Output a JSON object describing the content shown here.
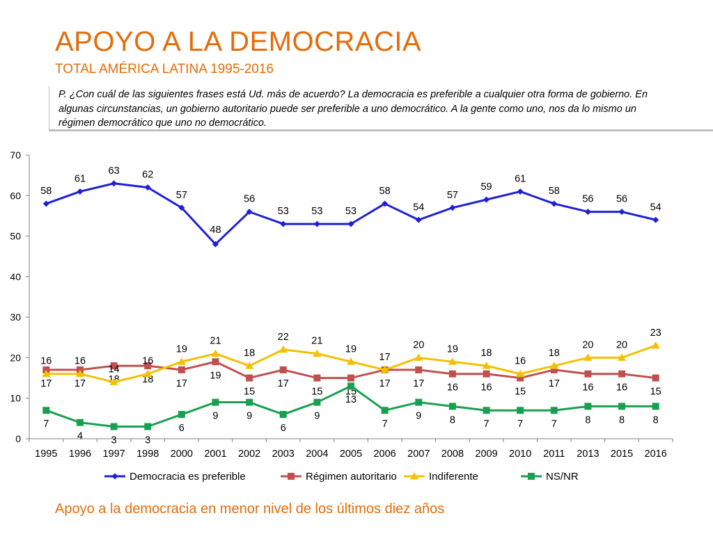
{
  "header": {
    "title": "APOYO A LA DEMOCRACIA",
    "subtitle": "TOTAL AMÉRICA LATINA 1995-2016",
    "question": "P. ¿Con cuál de las siguientes frases está Ud. más de acuerdo? La democracia es preferible a cualquier otra forma de gobierno. En algunas circunstancias, un gobierno autoritario puede ser preferible a uno democrático. A la gente como uno, nos da lo mismo un régimen democrático que uno no democrático."
  },
  "footer": {
    "conclusion": "Apoyo a la democracia en menor nivel de los últimos diez años"
  },
  "chart_data": {
    "type": "line",
    "categories": [
      "1995",
      "1996",
      "1997",
      "1998",
      "2000",
      "2001",
      "2002",
      "2003",
      "2004",
      "2005",
      "2006",
      "2007",
      "2008",
      "2009",
      "2010",
      "2011",
      "2013",
      "2015",
      "2016"
    ],
    "ylim": [
      0,
      70
    ],
    "yticks": [
      0,
      10,
      20,
      30,
      40,
      50,
      60,
      70
    ],
    "grid": false,
    "legend_position": "bottom",
    "series": [
      {
        "name": "Democracia es preferible",
        "color": "#1f1fd6",
        "marker": "diamond",
        "values": [
          58,
          61,
          63,
          62,
          57,
          48,
          56,
          53,
          53,
          53,
          58,
          54,
          57,
          59,
          61,
          58,
          56,
          56,
          54
        ]
      },
      {
        "name": "Régimen autoritario",
        "color": "#c0504d",
        "marker": "square",
        "values": [
          17,
          17,
          18,
          18,
          17,
          19,
          15,
          17,
          15,
          15,
          17,
          17,
          16,
          16,
          15,
          17,
          16,
          16,
          15
        ]
      },
      {
        "name": "Indiferente",
        "color": "#f5c000",
        "marker": "triangle",
        "values": [
          16,
          16,
          14,
          16,
          19,
          21,
          18,
          22,
          21,
          19,
          17,
          20,
          19,
          18,
          16,
          18,
          20,
          20,
          23
        ]
      },
      {
        "name": "NS/NR",
        "color": "#18a050",
        "marker": "square",
        "values": [
          7,
          4,
          3,
          3,
          6,
          9,
          9,
          6,
          9,
          13,
          7,
          9,
          8,
          7,
          7,
          7,
          8,
          8,
          8
        ]
      }
    ]
  }
}
